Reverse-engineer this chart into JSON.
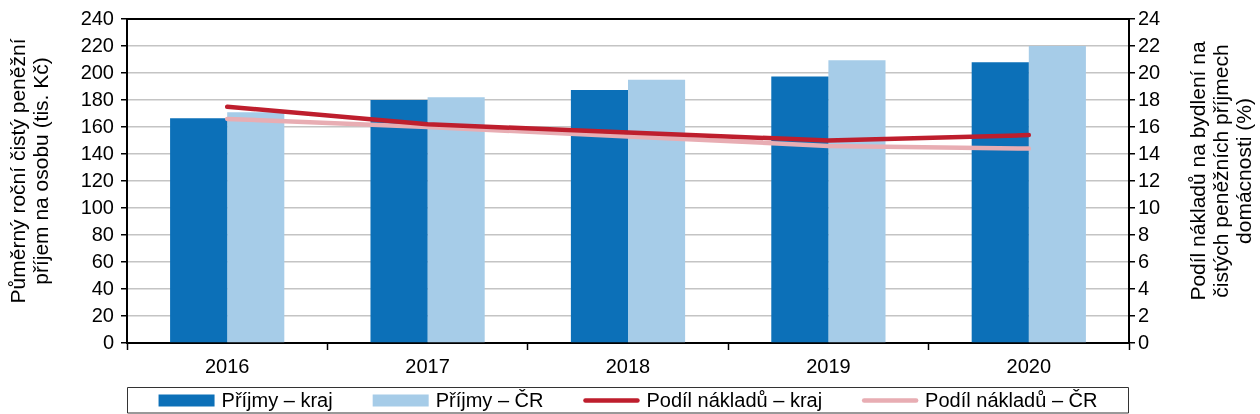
{
  "chart_data": {
    "type": "bar",
    "categories": [
      "2016",
      "2017",
      "2018",
      "2019",
      "2020"
    ],
    "series": [
      {
        "name": "Příjmy – kraj",
        "color": "#0c70b8",
        "values": [
          166.5,
          180,
          187.5,
          197.5,
          208
        ]
      },
      {
        "name": "Příjmy – ČR",
        "color": "#a6cce8",
        "values": [
          171,
          182,
          195,
          209.5,
          220
        ]
      },
      {
        "name": "Podíl nákladů – kraj",
        "type": "line",
        "axis": "y2",
        "color": "#be1e2d",
        "values": [
          17.5,
          16.2,
          15.6,
          15.0,
          15.4
        ]
      },
      {
        "name": "Podíl nákladů – ČR",
        "type": "line",
        "axis": "y2",
        "color": "#e8adb3",
        "values": [
          16.6,
          16.0,
          15.3,
          14.6,
          14.4
        ]
      }
    ],
    "ylabel": "Půměrný roční čistý peněžní příjem na osobu (tis. Kč)",
    "y2label": "Podíl nákladů na bydlení na čistých peněžních příjmech domácnosti (%)",
    "ylim": [
      0,
      240
    ],
    "yticks": [
      0,
      20,
      40,
      60,
      80,
      100,
      120,
      140,
      160,
      180,
      200,
      220,
      240
    ],
    "y2lim": [
      0,
      24
    ],
    "y2ticks": [
      0,
      2,
      4,
      6,
      8,
      10,
      12,
      14,
      16,
      18,
      20,
      22,
      24
    ],
    "grid": "y",
    "legend": "bottom",
    "marker": "none",
    "line_style": "solid"
  }
}
